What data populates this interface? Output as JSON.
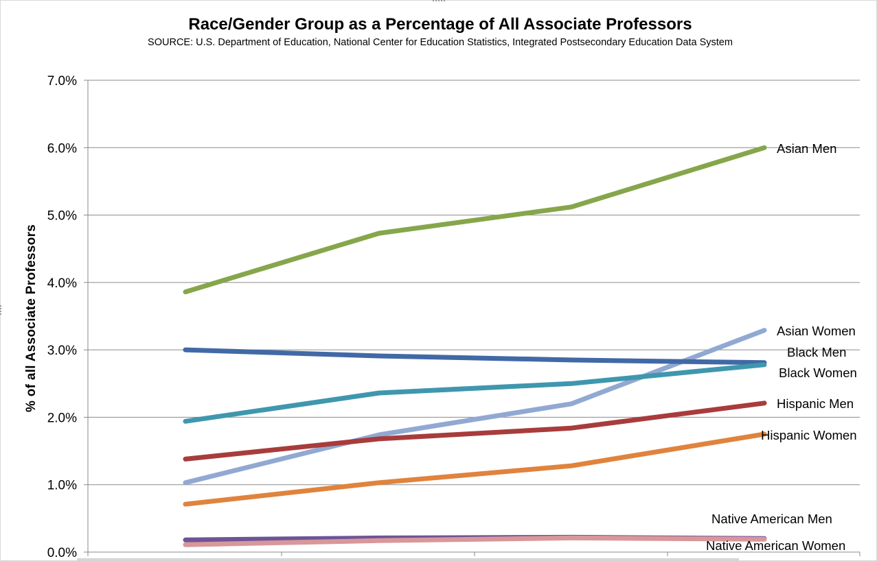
{
  "chart_data": {
    "type": "line",
    "title": "Race/Gender Group as a Percentage of All Associate Professors",
    "subtitle": "SOURCE: U.S. Department of Education, National Center for Education Statistics, Integrated Postsecondary Education Data System",
    "xlabel": "",
    "ylabel": "% of all Associate Professors",
    "ylim": [
      0,
      0.07
    ],
    "y_ticks": [
      0,
      0.01,
      0.02,
      0.03,
      0.04,
      0.05,
      0.06,
      0.07
    ],
    "y_tick_labels": [
      "0.0%",
      "1.0%",
      "2.0%",
      "3.0%",
      "4.0%",
      "5.0%",
      "6.0%",
      "7.0%"
    ],
    "x_points": 4,
    "grid": "horizontal",
    "legend": "labels at line ends (right)",
    "series": [
      {
        "name": "Asian Men",
        "color": "#86A64B",
        "values": [
          0.0386,
          0.0473,
          0.0512,
          0.06
        ]
      },
      {
        "name": "Asian Women",
        "color": "#91A9D2",
        "values": [
          0.0103,
          0.0174,
          0.022,
          0.0329
        ]
      },
      {
        "name": "Black Men",
        "color": "#4169A6",
        "values": [
          0.03,
          0.0291,
          0.0285,
          0.0281
        ]
      },
      {
        "name": "Black Women",
        "color": "#3F97AE",
        "values": [
          0.0194,
          0.0236,
          0.025,
          0.0278
        ]
      },
      {
        "name": "Hispanic Men",
        "color": "#A83C3C",
        "values": [
          0.0138,
          0.0168,
          0.0184,
          0.0221
        ]
      },
      {
        "name": "Hispanic Women",
        "color": "#E0833D",
        "values": [
          0.0071,
          0.0103,
          0.0128,
          0.0175
        ]
      },
      {
        "name": "Native American Men",
        "color": "#6D5497",
        "values": [
          0.0018,
          0.0021,
          0.0022,
          0.002
        ]
      },
      {
        "name": "Native American Women",
        "color": "#D9979A",
        "values": [
          0.0011,
          0.0017,
          0.0021,
          0.0019
        ]
      }
    ]
  }
}
